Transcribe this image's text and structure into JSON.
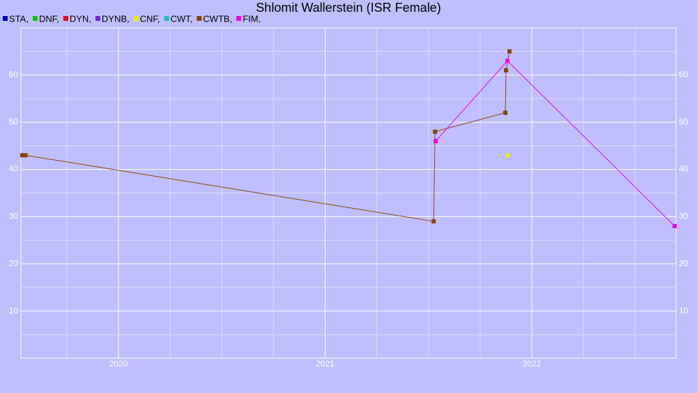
{
  "chart_data": {
    "type": "line",
    "title": "Shlomit Wallerstein (ISR Female)",
    "xlim": [
      2019.528,
      2022.698
    ],
    "xticks": [
      2020,
      2021,
      2022
    ],
    "ylim": [
      0,
      70
    ],
    "yticks": [
      10,
      20,
      30,
      40,
      50,
      60
    ],
    "grid": true,
    "series": [
      {
        "name": "STA,",
        "color": "#0000cc",
        "x": [],
        "values": []
      },
      {
        "name": "DNF,",
        "color": "#00cc00",
        "x": [],
        "values": []
      },
      {
        "name": "DYN,",
        "color": "#ee0000",
        "x": [],
        "values": []
      },
      {
        "name": "DYNB,",
        "color": "#7722dd",
        "x": [],
        "values": []
      },
      {
        "name": "CNF,",
        "color": "#eeee00",
        "x": [
          2021.882
        ],
        "values": [
          43
        ]
      },
      {
        "name": "CWT,",
        "color": "#22bbcc",
        "x": [],
        "values": []
      },
      {
        "name": "CWTB,",
        "color": "#884400",
        "x": [
          2019.535,
          2019.55,
          2021.525,
          2021.532,
          2021.872,
          2021.875,
          2021.892
        ],
        "values": [
          43,
          43,
          29,
          48,
          52,
          61,
          65
        ]
      },
      {
        "name": "FIM,",
        "color": "#ee00ee",
        "x": [
          2021.535,
          2021.882,
          2022.691
        ],
        "values": [
          46,
          63,
          28
        ]
      }
    ]
  }
}
